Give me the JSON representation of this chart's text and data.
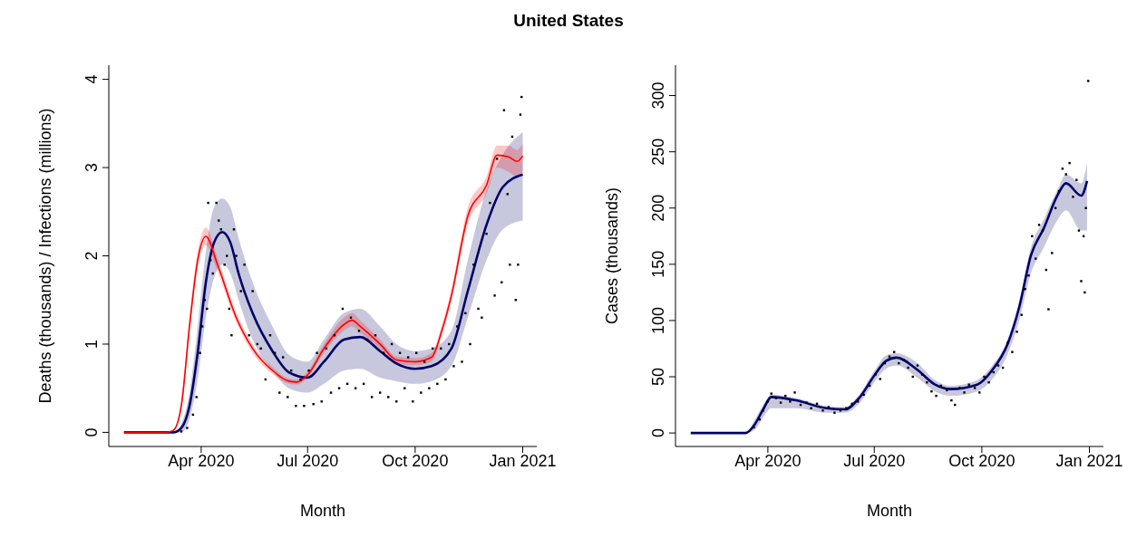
{
  "chart_data": [
    {
      "type": "line",
      "title": "United States",
      "xlabel": "Month",
      "ylabel": "Deaths (thousands) / Infections (millions)",
      "xlim": [
        "2020-01-13",
        "2021-01-13"
      ],
      "xticks": [
        {
          "value": "2020-04-01",
          "label": "Apr 2020"
        },
        {
          "value": "2020-07-01",
          "label": "Jul 2020"
        },
        {
          "value": "2020-10-01",
          "label": "Oct 2020"
        },
        {
          "value": "2021-01-01",
          "label": "Jan 2021"
        }
      ],
      "ylim": [
        -0.16,
        4.16
      ],
      "yticks": [
        0,
        1,
        2,
        3,
        4
      ],
      "series": [
        {
          "color": "#000066",
          "x": [
            "2020-01-26",
            "2020-03-08",
            "2020-03-15",
            "2020-03-22",
            "2020-03-29",
            "2020-04-05",
            "2020-04-12",
            "2020-04-19",
            "2020-04-26",
            "2020-05-03",
            "2020-05-15",
            "2020-06-01",
            "2020-06-15",
            "2020-07-01",
            "2020-07-15",
            "2020-08-01",
            "2020-08-15",
            "2020-09-01",
            "2020-09-15",
            "2020-10-01",
            "2020-10-15",
            "2020-11-01",
            "2020-11-15",
            "2020-12-01",
            "2020-12-15",
            "2021-01-01"
          ],
          "values": [
            0,
            0,
            0.05,
            0.3,
            0.9,
            1.7,
            2.15,
            2.27,
            2.15,
            1.8,
            1.35,
            0.92,
            0.68,
            0.62,
            0.8,
            1.05,
            1.08,
            0.92,
            0.78,
            0.72,
            0.75,
            0.95,
            1.6,
            2.35,
            2.78,
            2.92
          ],
          "lower": [
            0,
            0,
            0,
            0.15,
            0.6,
            1.3,
            1.75,
            1.9,
            1.8,
            1.5,
            1.05,
            0.7,
            0.5,
            0.45,
            0.55,
            0.7,
            0.72,
            0.62,
            0.58,
            0.55,
            0.58,
            0.75,
            1.3,
            1.95,
            2.3,
            2.4
          ],
          "upper": [
            0,
            0,
            0.1,
            0.45,
            1.2,
            2.05,
            2.55,
            2.65,
            2.55,
            2.2,
            1.7,
            1.2,
            0.88,
            0.8,
            1.05,
            1.35,
            1.4,
            1.2,
            1.0,
            0.92,
            0.95,
            1.15,
            1.95,
            2.75,
            3.15,
            3.4
          ]
        },
        {
          "color": "#ff0000",
          "x": [
            "2020-01-26",
            "2020-03-01",
            "2020-03-08",
            "2020-03-15",
            "2020-03-22",
            "2020-03-29",
            "2020-04-05",
            "2020-04-15",
            "2020-05-01",
            "2020-05-15",
            "2020-06-01",
            "2020-06-15",
            "2020-06-22",
            "2020-07-01",
            "2020-07-15",
            "2020-08-01",
            "2020-08-08",
            "2020-08-15",
            "2020-09-01",
            "2020-09-15",
            "2020-10-01",
            "2020-10-15",
            "2020-10-24",
            "2020-11-01",
            "2020-11-15",
            "2020-12-01",
            "2020-12-10",
            "2020-12-20",
            "2020-12-27",
            "2021-01-01"
          ],
          "values": [
            0,
            0,
            0.02,
            0.3,
            1.2,
            1.95,
            2.22,
            1.9,
            1.3,
            0.95,
            0.7,
            0.58,
            0.57,
            0.65,
            0.95,
            1.22,
            1.27,
            1.2,
            1.0,
            0.82,
            0.8,
            0.85,
            1.16,
            1.55,
            2.45,
            2.8,
            3.14,
            3.12,
            3.07,
            3.13
          ],
          "lower": [
            0,
            0,
            0.01,
            0.25,
            1.1,
            1.85,
            2.12,
            1.82,
            1.25,
            0.9,
            0.66,
            0.55,
            0.54,
            0.62,
            0.9,
            1.15,
            1.2,
            1.13,
            0.95,
            0.78,
            0.76,
            0.8,
            1.1,
            1.48,
            2.35,
            2.7,
            3.0,
            2.95,
            2.9,
            2.95
          ],
          "upper": [
            0,
            0,
            0.03,
            0.35,
            1.3,
            2.05,
            2.32,
            1.98,
            1.36,
            1.0,
            0.74,
            0.61,
            0.6,
            0.69,
            1.0,
            1.3,
            1.35,
            1.27,
            1.05,
            0.86,
            0.84,
            0.9,
            1.22,
            1.62,
            2.55,
            2.9,
            3.25,
            3.25,
            3.2,
            3.27
          ]
        },
        {
          "type": "scatter",
          "color": "#000000",
          "marker": "square",
          "x": [
            "2020-03-15",
            "2020-03-20",
            "2020-03-25",
            "2020-03-28",
            "2020-03-31",
            "2020-04-02",
            "2020-04-04",
            "2020-04-06",
            "2020-04-07",
            "2020-04-09",
            "2020-04-11",
            "2020-04-14",
            "2020-04-16",
            "2020-04-18",
            "2020-04-21",
            "2020-04-23",
            "2020-04-25",
            "2020-04-27",
            "2020-04-29",
            "2020-05-01",
            "2020-05-05",
            "2020-05-08",
            "2020-05-12",
            "2020-05-15",
            "2020-05-19",
            "2020-05-22",
            "2020-05-26",
            "2020-05-30",
            "2020-06-03",
            "2020-06-07",
            "2020-06-10",
            "2020-06-14",
            "2020-06-17",
            "2020-06-21",
            "2020-06-25",
            "2020-06-28",
            "2020-07-02",
            "2020-07-06",
            "2020-07-09",
            "2020-07-13",
            "2020-07-17",
            "2020-07-21",
            "2020-07-24",
            "2020-07-28",
            "2020-07-31",
            "2020-08-04",
            "2020-08-07",
            "2020-08-11",
            "2020-08-14",
            "2020-08-18",
            "2020-08-21",
            "2020-08-25",
            "2020-08-28",
            "2020-09-01",
            "2020-09-04",
            "2020-09-08",
            "2020-09-11",
            "2020-09-15",
            "2020-09-18",
            "2020-09-22",
            "2020-09-25",
            "2020-09-29",
            "2020-10-02",
            "2020-10-06",
            "2020-10-09",
            "2020-10-13",
            "2020-10-16",
            "2020-10-20",
            "2020-10-23",
            "2020-10-27",
            "2020-10-30",
            "2020-11-03",
            "2020-11-06",
            "2020-11-10",
            "2020-11-13",
            "2020-11-17",
            "2020-11-20",
            "2020-11-24",
            "2020-11-27",
            "2020-12-01",
            "2020-12-04",
            "2020-12-08",
            "2020-12-10",
            "2020-12-14",
            "2020-12-16",
            "2020-12-19",
            "2020-12-21",
            "2020-12-23",
            "2020-12-26",
            "2020-12-28",
            "2020-12-30",
            "2020-12-31"
          ],
          "values": [
            0.01,
            0.05,
            0.2,
            0.4,
            0.9,
            1.2,
            1.5,
            1.4,
            2.6,
            1.95,
            1.8,
            2.6,
            2.4,
            2.3,
            1.9,
            2.0,
            1.4,
            1.1,
            2.3,
            2.0,
            1.6,
            1.9,
            1.1,
            1.6,
            1.0,
            0.95,
            0.6,
            1.1,
            0.9,
            0.45,
            0.85,
            0.4,
            0.7,
            0.3,
            0.6,
            0.3,
            0.7,
            0.32,
            0.9,
            0.35,
            0.95,
            0.45,
            1.1,
            0.5,
            1.4,
            0.55,
            1.3,
            0.5,
            1.15,
            0.55,
            1.05,
            0.4,
            1.1,
            0.45,
            0.9,
            0.4,
            1.0,
            0.35,
            0.9,
            0.5,
            0.85,
            0.35,
            0.9,
            0.45,
            0.8,
            0.5,
            0.95,
            0.55,
            0.95,
            0.6,
            1.0,
            0.75,
            1.2,
            0.8,
            1.35,
            1.0,
            1.9,
            1.4,
            1.3,
            2.25,
            2.6,
            1.55,
            3.1,
            1.7,
            3.65,
            2.7,
            1.9,
            3.35,
            1.5,
            1.9,
            3.6,
            3.8
          ]
        }
      ]
    },
    {
      "type": "line",
      "xlabel": "Month",
      "ylabel": "Cases (thousands)",
      "xlim": [
        "2020-01-13",
        "2021-01-13"
      ],
      "xticks": [
        {
          "value": "2020-04-01",
          "label": "Apr 2020"
        },
        {
          "value": "2020-07-01",
          "label": "Jul 2020"
        },
        {
          "value": "2020-10-01",
          "label": "Oct 2020"
        },
        {
          "value": "2021-01-01",
          "label": "Jan 2021"
        }
      ],
      "ylim": [
        -12,
        327
      ],
      "yticks": [
        0,
        50,
        100,
        150,
        200,
        250,
        300
      ],
      "series": [
        {
          "color": "#000066",
          "x": [
            "2020-01-26",
            "2020-03-13",
            "2020-03-21",
            "2020-03-28",
            "2020-04-04",
            "2020-04-25",
            "2020-05-21",
            "2020-06-06",
            "2020-06-18",
            "2020-07-01",
            "2020-07-11",
            "2020-07-20",
            "2020-08-07",
            "2020-08-22",
            "2020-09-04",
            "2020-09-27",
            "2020-10-10",
            "2020-10-23",
            "2020-11-02",
            "2020-11-12",
            "2020-11-23",
            "2020-12-05",
            "2020-12-12",
            "2020-12-25",
            "2020-12-30"
          ],
          "values": [
            0,
            0,
            8,
            21,
            32,
            29,
            22,
            21,
            31,
            51,
            64,
            67,
            56,
            43,
            39,
            43,
            56,
            79,
            112,
            158,
            182,
            212,
            222,
            211,
            224
          ],
          "lower": [
            0,
            0,
            3,
            14,
            22,
            22,
            18,
            18,
            26,
            45,
            57,
            60,
            49,
            37,
            33,
            37,
            48,
            70,
            100,
            142,
            165,
            190,
            198,
            180,
            180
          ],
          "upper": [
            0,
            0,
            12,
            25,
            34,
            31,
            24,
            23,
            34,
            55,
            69,
            71,
            62,
            47,
            42,
            47,
            60,
            83,
            117,
            165,
            190,
            217,
            230,
            222,
            240
          ]
        },
        {
          "type": "scatter",
          "color": "#000000",
          "marker": "square",
          "x": [
            "2020-03-20",
            "2020-03-25",
            "2020-03-28",
            "2020-04-01",
            "2020-04-04",
            "2020-04-08",
            "2020-04-12",
            "2020-04-16",
            "2020-04-20",
            "2020-04-24",
            "2020-04-29",
            "2020-05-04",
            "2020-05-08",
            "2020-05-13",
            "2020-05-18",
            "2020-05-23",
            "2020-05-28",
            "2020-06-02",
            "2020-06-07",
            "2020-06-12",
            "2020-06-17",
            "2020-06-22",
            "2020-06-27",
            "2020-07-02",
            "2020-07-06",
            "2020-07-10",
            "2020-07-14",
            "2020-07-18",
            "2020-07-22",
            "2020-07-26",
            "2020-07-30",
            "2020-08-03",
            "2020-08-07",
            "2020-08-11",
            "2020-08-15",
            "2020-08-19",
            "2020-08-23",
            "2020-08-27",
            "2020-09-01",
            "2020-09-05",
            "2020-09-08",
            "2020-09-12",
            "2020-09-16",
            "2020-09-20",
            "2020-09-25",
            "2020-09-29",
            "2020-10-03",
            "2020-10-07",
            "2020-10-11",
            "2020-10-15",
            "2020-10-19",
            "2020-10-23",
            "2020-10-27",
            "2020-10-31",
            "2020-11-04",
            "2020-11-07",
            "2020-11-10",
            "2020-11-13",
            "2020-11-16",
            "2020-11-19",
            "2020-11-22",
            "2020-11-25",
            "2020-11-27",
            "2020-11-30",
            "2020-12-03",
            "2020-12-06",
            "2020-12-09",
            "2020-12-12",
            "2020-12-15",
            "2020-12-18",
            "2020-12-21",
            "2020-12-23",
            "2020-12-25",
            "2020-12-27",
            "2020-12-28",
            "2020-12-29",
            "2020-12-31"
          ],
          "values": [
            5,
            12,
            20,
            28,
            35,
            31,
            27,
            33,
            28,
            36,
            25,
            27,
            22,
            26,
            20,
            23,
            18,
            20,
            22,
            26,
            28,
            34,
            42,
            52,
            48,
            62,
            68,
            72,
            62,
            65,
            58,
            50,
            60,
            52,
            45,
            37,
            33,
            42,
            38,
            29,
            25,
            40,
            36,
            43,
            40,
            36,
            50,
            45,
            54,
            60,
            58,
            80,
            72,
            90,
            105,
            128,
            140,
            175,
            155,
            185,
            180,
            145,
            110,
            160,
            200,
            215,
            235,
            230,
            240,
            210,
            225,
            180,
            135,
            175,
            125,
            200,
            313
          ]
        }
      ]
    }
  ]
}
